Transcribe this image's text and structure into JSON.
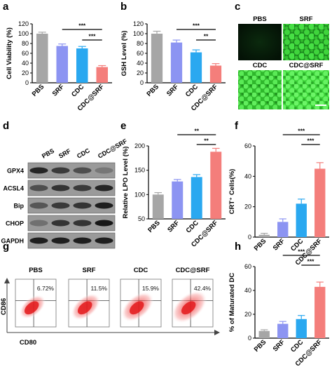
{
  "panels": [
    "a",
    "b",
    "c",
    "d",
    "e",
    "f",
    "g",
    "h"
  ],
  "colors": {
    "PBS": "#a6a6a6",
    "SRF": "#8c94f2",
    "CDC": "#2aa8f0",
    "CDC@SRF": "#f47e7b"
  },
  "chart_data": [
    {
      "id": "a",
      "type": "bar",
      "ylabel": "Cell Viability (%)",
      "categories": [
        "PBS",
        "SRF",
        "CDC",
        "CDC@SRF"
      ],
      "values": [
        100,
        75,
        70,
        32
      ],
      "errors": [
        3,
        4,
        4,
        3
      ],
      "ylim": [
        0,
        120
      ],
      "yticks": [
        0,
        20,
        40,
        60,
        80,
        100,
        120
      ],
      "sig": [
        {
          "from": 1,
          "to": 3,
          "label": "***"
        },
        {
          "from": 2,
          "to": 3,
          "label": "***"
        }
      ]
    },
    {
      "id": "b",
      "type": "bar",
      "ylabel": "GSH Level (%)",
      "categories": [
        "PBS",
        "SRF",
        "CDC",
        "CDC@SRF"
      ],
      "values": [
        100,
        82,
        62,
        35
      ],
      "errors": [
        5,
        5,
        5,
        4
      ],
      "ylim": [
        0,
        120
      ],
      "yticks": [
        0,
        20,
        40,
        60,
        80,
        100,
        120
      ],
      "sig": [
        {
          "from": 1,
          "to": 3,
          "label": "***"
        },
        {
          "from": 2,
          "to": 3,
          "label": "**"
        }
      ]
    },
    {
      "id": "e",
      "type": "bar",
      "ylabel": "Relative LPO Level (%)",
      "categories": [
        "PBS",
        "SRF",
        "CDC",
        "CDC@SRF"
      ],
      "values": [
        100,
        127,
        136,
        188
      ],
      "errors": [
        4,
        4,
        5,
        7
      ],
      "ylim": [
        50,
        200
      ],
      "yticks": [
        50,
        100,
        150,
        200
      ],
      "sig": [
        {
          "from": 1,
          "to": 3,
          "label": "**"
        },
        {
          "from": 2,
          "to": 3,
          "label": "**"
        }
      ]
    },
    {
      "id": "f",
      "type": "bar",
      "ylabel": "CRT⁺ Cells(%)",
      "categories": [
        "PBS",
        "SRF",
        "CDC",
        "CDC@SRF"
      ],
      "values": [
        1.5,
        10,
        22,
        45
      ],
      "errors": [
        1,
        2,
        3,
        4
      ],
      "ylim": [
        0,
        60
      ],
      "yticks": [
        0,
        20,
        40,
        60
      ],
      "sig": [
        {
          "from": 1,
          "to": 3,
          "label": "***"
        },
        {
          "from": 2,
          "to": 3,
          "label": "***"
        }
      ]
    },
    {
      "id": "h",
      "type": "bar",
      "ylabel": "% of Maturated DC",
      "categories": [
        "PBS",
        "SRF",
        "CDC",
        "CDC@SRF"
      ],
      "values": [
        6,
        12,
        16,
        43
      ],
      "errors": [
        1,
        2,
        3,
        4
      ],
      "ylim": [
        0,
        60
      ],
      "yticks": [
        0,
        20,
        40,
        60
      ],
      "sig": [
        {
          "from": 1,
          "to": 3,
          "label": "***"
        },
        {
          "from": 2,
          "to": 3,
          "label": "***"
        }
      ]
    }
  ],
  "microscopy": {
    "labels": [
      "PBS",
      "SRF",
      "CDC",
      "CDC@SRF"
    ]
  },
  "western": {
    "lanes": [
      "PBS",
      "SRF",
      "CDC",
      "CDC@SRF"
    ],
    "proteins": [
      "GPX4",
      "ACSL4",
      "Bip",
      "CHOP",
      "GAPDH"
    ]
  },
  "flow": {
    "groups": [
      {
        "name": "PBS",
        "pct": "6.72%"
      },
      {
        "name": "SRF",
        "pct": "11.5%"
      },
      {
        "name": "CDC",
        "pct": "15.9%"
      },
      {
        "name": "CDC@SRF",
        "pct": "42.4%"
      }
    ],
    "xlabel": "CD80",
    "ylabel": "CD86"
  }
}
